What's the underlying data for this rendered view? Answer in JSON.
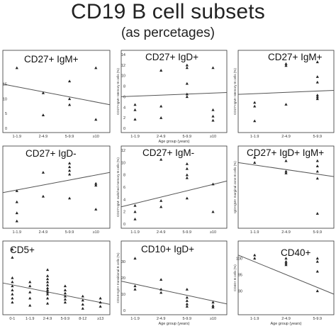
{
  "header": {
    "title": "CD19 B cell subsets",
    "subtitle": "(as percetages)"
  },
  "chart_data": [
    {
      "type": "scatter",
      "title": "CD27+ IgM+",
      "xlabel": "",
      "ylabel": "",
      "categories": [
        "1-1.9",
        "2-4.9",
        "5-9.9",
        "≥10"
      ],
      "yticks": [
        "0",
        "5",
        "10",
        "15"
      ],
      "ylim": [
        0,
        25
      ],
      "points": [
        [
          0,
          20.5
        ],
        [
          1,
          12
        ],
        [
          1,
          4.5
        ],
        [
          2,
          16
        ],
        [
          2,
          10
        ],
        [
          2,
          8
        ],
        [
          3,
          20.5
        ],
        [
          3,
          3
        ]
      ],
      "trend": [
        15,
        8
      ]
    },
    {
      "type": "scatter",
      "title": "CD27+ IgD+",
      "xlabel": "Age group (years)",
      "ylabel": "CD27+IgM+ Memory B cells (%)",
      "categories": [
        "1-1.9",
        "2-4.9",
        "5-9.9",
        "≥10"
      ],
      "yticks": [
        "0",
        "2",
        "4",
        "6",
        "8",
        "10",
        "12",
        "14"
      ],
      "ylim": [
        0,
        14
      ],
      "points": [
        [
          0,
          4.5
        ],
        [
          0,
          3.5
        ],
        [
          0,
          1.7
        ],
        [
          1,
          11
        ],
        [
          1,
          4.2
        ],
        [
          1,
          2
        ],
        [
          2,
          12
        ],
        [
          2,
          11.5
        ],
        [
          2,
          8.5
        ],
        [
          2,
          6.5
        ],
        [
          2,
          6
        ],
        [
          3,
          11.5
        ],
        [
          3,
          3.5
        ],
        [
          3,
          2.3
        ],
        [
          3,
          1.5
        ]
      ],
      "trend": [
        6,
        6.8
      ]
    },
    {
      "type": "scatter",
      "title": "CD27+ IgM+",
      "xlabel": "",
      "ylabel": "CD27+IgM+ Memory B cells (%)",
      "categories": [
        "1-1.9",
        "2-4.9",
        "5-9.9"
      ],
      "yticks": [],
      "ylim": [
        0,
        20
      ],
      "points": [
        [
          0,
          7
        ],
        [
          0,
          6
        ],
        [
          0,
          2
        ],
        [
          1,
          17.5
        ],
        [
          1,
          17
        ],
        [
          1,
          6.5
        ],
        [
          2,
          18
        ],
        [
          2,
          14
        ],
        [
          2,
          12.5
        ],
        [
          2,
          9
        ],
        [
          2,
          8.5
        ],
        [
          2,
          8
        ]
      ],
      "trend": [
        9.2,
        10.3
      ]
    },
    {
      "type": "scatter",
      "title": "CD27+ IgD-",
      "xlabel": "",
      "ylabel": "",
      "categories": [
        "1-1.9",
        "2-4.9",
        "5-9.9",
        "≥10"
      ],
      "yticks": [],
      "ylim": [
        0,
        20
      ],
      "points": [
        [
          0,
          9
        ],
        [
          0,
          6
        ],
        [
          0,
          3
        ],
        [
          0,
          0.8
        ],
        [
          1,
          14
        ],
        [
          1,
          7.5
        ],
        [
          2,
          16.5
        ],
        [
          2,
          15.5
        ],
        [
          2,
          14.5
        ],
        [
          2,
          13.5
        ],
        [
          2,
          7
        ],
        [
          3,
          11
        ],
        [
          3,
          10.5
        ],
        [
          3,
          4
        ]
      ],
      "trend": [
        8.5,
        14
      ]
    },
    {
      "type": "scatter",
      "title": "CD27+ IgM-",
      "xlabel": "",
      "ylabel": "CD27+IgM- switched memory B cells (%)",
      "categories": [
        "1-1.9",
        "2-4.9",
        "5-9.9",
        "≥10"
      ],
      "yticks": [
        "0",
        "2",
        "4",
        "6",
        "8",
        "10",
        "12"
      ],
      "ylim": [
        0,
        12
      ],
      "points": [
        [
          0,
          3
        ],
        [
          0,
          2
        ],
        [
          0,
          0.8
        ],
        [
          1,
          10.5
        ],
        [
          1,
          3.8
        ],
        [
          1,
          2.8
        ],
        [
          2,
          9.8
        ],
        [
          2,
          9
        ],
        [
          2,
          8
        ],
        [
          2,
          7.5
        ],
        [
          2,
          4.2
        ],
        [
          3,
          6.5
        ],
        [
          3,
          2
        ]
      ],
      "trend": [
        2.8,
        7
      ]
    },
    {
      "type": "scatter",
      "title": "CD27+ IgD+ IgM+",
      "xlabel": "",
      "ylabel": "IgD+IgM+ marginal zone B cells (%)",
      "categories": [
        "1-1.9",
        "2-4.9",
        "5-9.9"
      ],
      "yticks": [],
      "ylim": [
        55,
        97
      ],
      "points": [
        [
          0,
          93
        ],
        [
          0,
          90
        ],
        [
          1,
          91
        ],
        [
          1,
          85
        ],
        [
          1,
          84
        ],
        [
          2,
          91
        ],
        [
          2,
          88
        ],
        [
          2,
          85
        ],
        [
          2,
          81
        ],
        [
          2,
          61
        ]
      ],
      "trend": [
        90,
        82
      ]
    },
    {
      "type": "scatter",
      "title": "CD5+",
      "xlabel": "",
      "ylabel": "",
      "categories": [
        "0-1",
        "1-1.9",
        "2-4.9",
        "5-9.9",
        "8-12",
        "≥13"
      ],
      "yticks": [],
      "ylim": [
        0,
        32
      ],
      "points": [
        [
          0,
          30
        ],
        [
          0,
          26
        ],
        [
          0,
          16
        ],
        [
          0,
          14
        ],
        [
          0,
          12
        ],
        [
          0,
          10
        ],
        [
          0,
          8
        ],
        [
          0,
          6
        ],
        [
          0,
          4
        ],
        [
          1,
          14
        ],
        [
          1,
          12
        ],
        [
          1,
          9
        ],
        [
          1,
          6
        ],
        [
          1,
          2.5
        ],
        [
          2,
          20
        ],
        [
          2,
          17
        ],
        [
          2,
          15.5
        ],
        [
          2,
          14
        ],
        [
          2,
          12.5
        ],
        [
          2,
          11
        ],
        [
          2,
          10
        ],
        [
          2,
          9
        ],
        [
          2,
          8
        ],
        [
          2,
          6
        ],
        [
          2,
          3.5
        ],
        [
          3,
          12
        ],
        [
          3,
          10
        ],
        [
          3,
          8.5
        ],
        [
          3,
          7
        ],
        [
          3,
          5.5
        ],
        [
          3,
          4
        ],
        [
          4,
          7
        ],
        [
          4,
          5
        ],
        [
          4,
          3
        ],
        [
          4,
          1
        ],
        [
          5,
          6
        ],
        [
          5,
          4
        ],
        [
          5,
          2
        ]
      ],
      "trend": [
        13.5,
        3
      ]
    },
    {
      "type": "scatter",
      "title": "CD10+ IgD+",
      "xlabel": "Age group (years)",
      "ylabel": "CD10+IgD+ transitional B cells (%)",
      "categories": [
        "1-1.9",
        "2-4.9",
        "5-9.9",
        "≥10"
      ],
      "yticks": [
        "0",
        "10",
        "20",
        "30"
      ],
      "ylim": [
        0,
        40
      ],
      "points": [
        [
          0,
          32
        ],
        [
          0,
          15
        ],
        [
          0,
          13
        ],
        [
          1,
          19
        ],
        [
          1,
          13
        ],
        [
          1,
          11
        ],
        [
          2,
          13
        ],
        [
          2,
          8
        ],
        [
          2,
          6
        ],
        [
          2,
          4
        ],
        [
          2,
          2.5
        ],
        [
          3,
          5
        ],
        [
          3,
          3
        ],
        [
          3,
          2
        ]
      ],
      "trend": [
        18,
        4
      ]
    },
    {
      "type": "scatter",
      "title": "CD40+",
      "xlabel": "Age group (years)",
      "ylabel": "CD40+ B cells (%)",
      "categories": [
        "1-1.9",
        "2-4.9",
        "5-9.9"
      ],
      "yticks": [
        "90",
        "95",
        "100"
      ],
      "ylim": [
        84,
        104
      ],
      "points": [
        [
          0,
          101
        ],
        [
          0,
          100
        ],
        [
          1,
          100
        ],
        [
          1,
          99
        ],
        [
          1,
          98.5
        ],
        [
          1,
          98
        ],
        [
          2,
          100
        ],
        [
          2,
          99
        ],
        [
          2,
          96
        ],
        [
          2,
          90
        ]
      ],
      "trend": [
        101,
        89
      ]
    }
  ]
}
